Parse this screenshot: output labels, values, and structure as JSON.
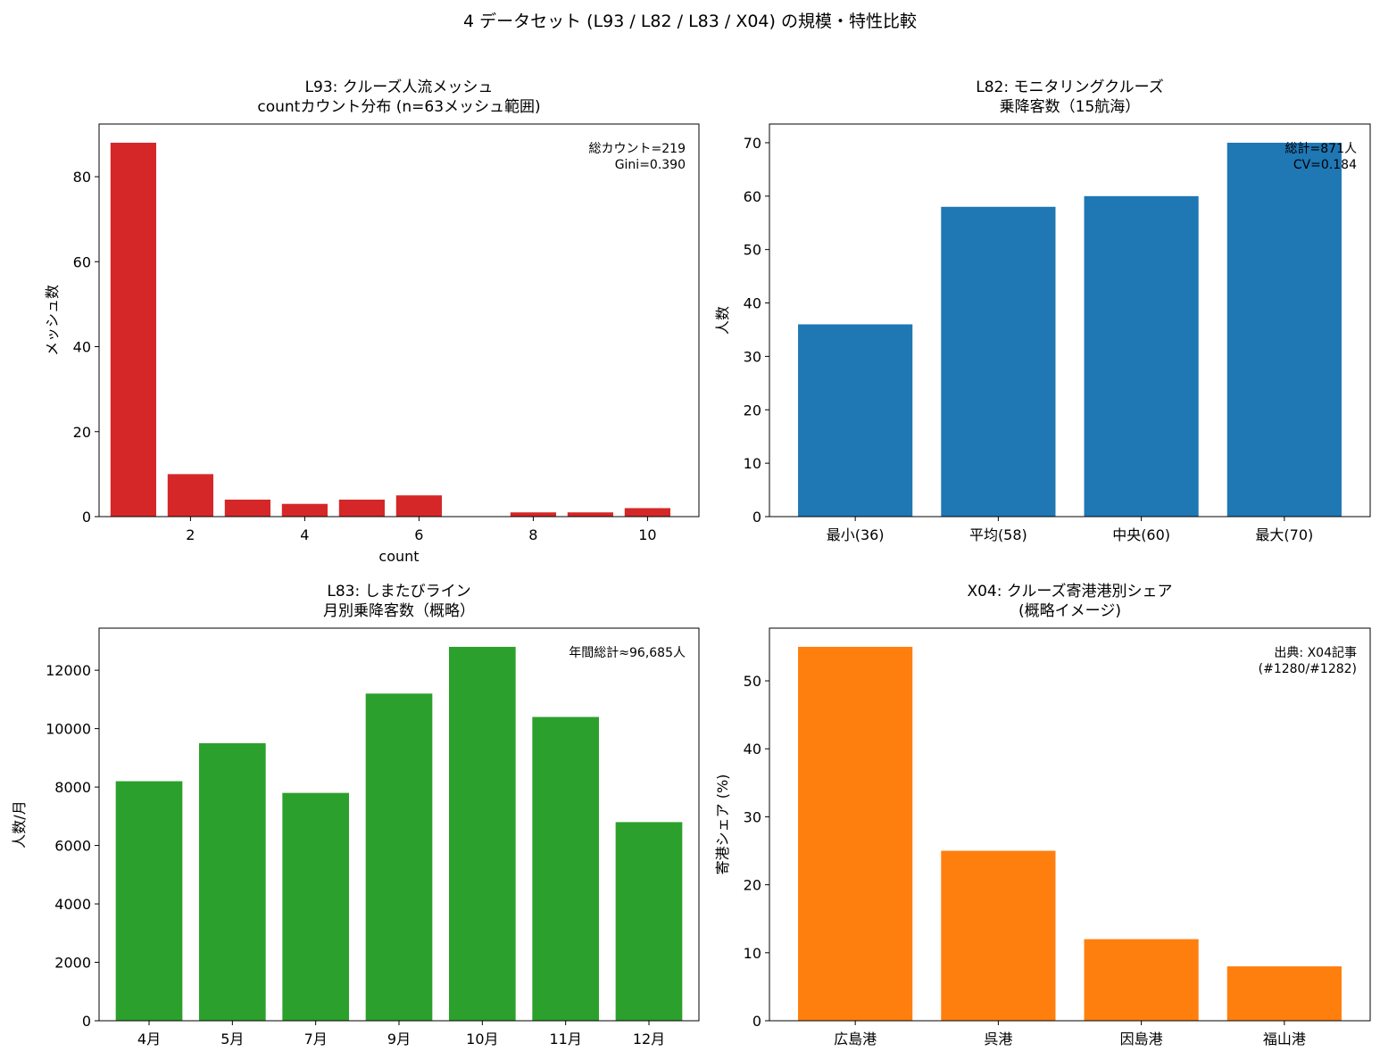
{
  "suptitle": "4 データセット (L93 / L82 / L83 / X04) の規模・特性比較",
  "chart_data": [
    {
      "type": "bar",
      "title_lines": [
        "L93: クルーズ人流メッシュ",
        "countカウント分布 (n=63メッシュ範囲)"
      ],
      "xlabel": "count",
      "ylabel": "メッシュ数",
      "x": [
        1,
        2,
        3,
        4,
        5,
        6,
        7,
        8,
        9,
        10
      ],
      "values": [
        88,
        10,
        4,
        3,
        4,
        5,
        0,
        1,
        1,
        2
      ],
      "xticks": [
        2,
        4,
        6,
        8,
        10
      ],
      "yticks": [
        0,
        20,
        40,
        60,
        80
      ],
      "xlim": [
        0.4,
        10.9
      ],
      "ylim": [
        0,
        92.4
      ],
      "color": "#d62728",
      "annotation_lines": [
        "総カウント=219",
        "Gini=0.390"
      ],
      "grid": false
    },
    {
      "type": "bar",
      "title_lines": [
        "L82: モニタリングクルーズ",
        "乗降客数（15航海）"
      ],
      "xlabel": "",
      "ylabel": "人数",
      "categories": [
        "最小(36)",
        "平均(58)",
        "中央(60)",
        "最大(70)"
      ],
      "values": [
        36,
        58,
        60,
        70
      ],
      "yticks": [
        0,
        10,
        20,
        30,
        40,
        50,
        60,
        70
      ],
      "ylim": [
        0,
        73.5
      ],
      "color": "#1f77b4",
      "annotation_lines": [
        "総計=871人",
        "CV=0.184"
      ],
      "grid": false
    },
    {
      "type": "bar",
      "title_lines": [
        "L83: しまたびライン",
        "月別乗降客数（概略）"
      ],
      "xlabel": "",
      "ylabel": "人数/月",
      "categories": [
        "4月",
        "5月",
        "7月",
        "9月",
        "10月",
        "11月",
        "12月"
      ],
      "values": [
        8200,
        9500,
        7800,
        11200,
        12800,
        10400,
        6800
      ],
      "yticks": [
        0,
        2000,
        4000,
        6000,
        8000,
        10000,
        12000
      ],
      "ylim": [
        0,
        13440
      ],
      "color": "#2ca02c",
      "annotation_lines": [
        "年間総計≈96,685人"
      ],
      "grid": false
    },
    {
      "type": "bar",
      "title_lines": [
        "X04: クルーズ寄港港別シェア",
        "(概略イメージ)"
      ],
      "xlabel": "",
      "ylabel": "寄港シェア (%)",
      "categories": [
        "広島港",
        "呉港",
        "因島港",
        "福山港"
      ],
      "values": [
        55,
        25,
        12,
        8
      ],
      "yticks": [
        0,
        10,
        20,
        30,
        40,
        50
      ],
      "ylim": [
        0,
        57.75
      ],
      "color": "#ff7f0e",
      "annotation_lines": [
        "出典: X04記事",
        "(#1280/#1282)"
      ],
      "grid": false
    }
  ]
}
